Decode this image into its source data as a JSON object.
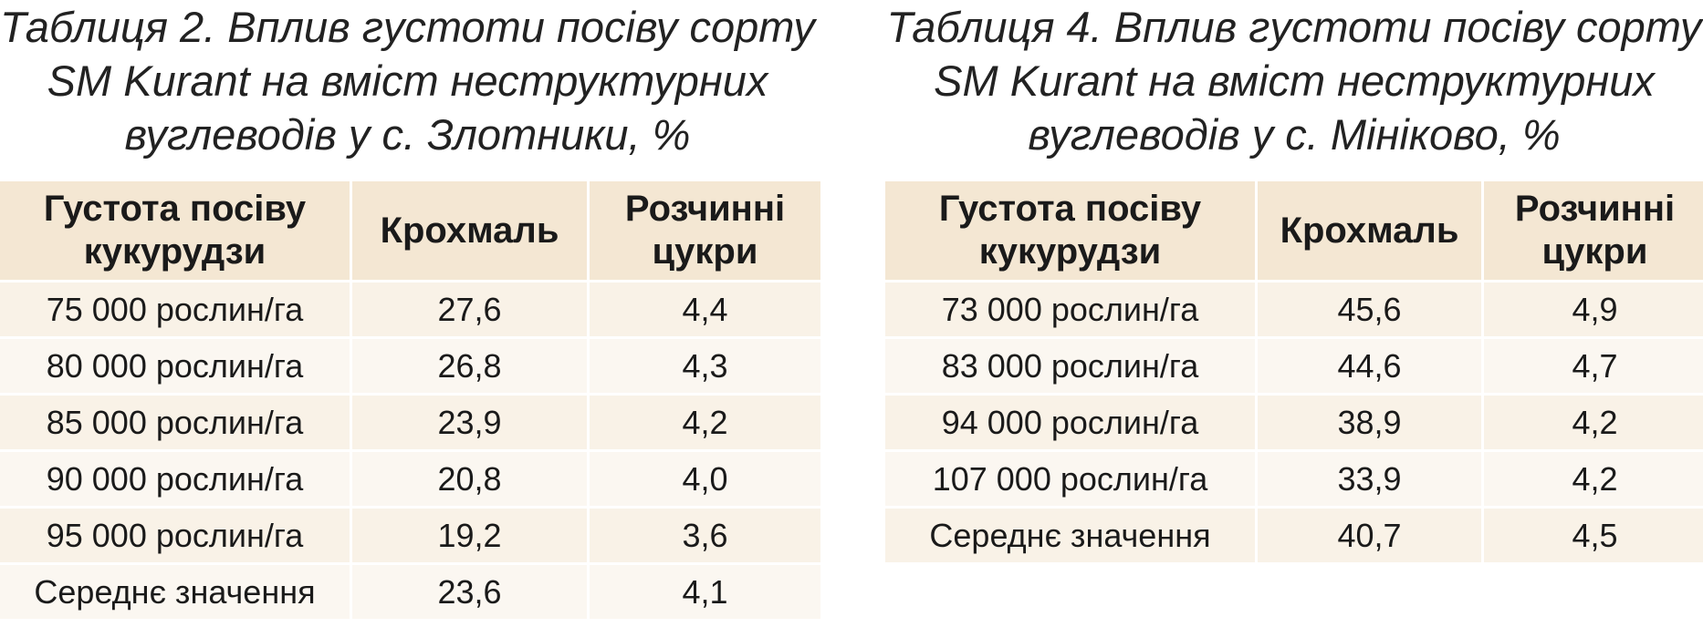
{
  "tables": [
    {
      "title": "Таблиця 2. Вплив густоти посіву сорту SM Kurant на вміст неструктурних вуглеводів у с. Злотники, %",
      "columns": [
        "Густота посіву кукурудзи",
        "Крохмаль",
        "Розчинні цукри"
      ],
      "rows": [
        [
          "75 000 рослин/га",
          "27,6",
          "4,4"
        ],
        [
          "80 000 рослин/га",
          "26,8",
          "4,3"
        ],
        [
          "85 000 рослин/га",
          "23,9",
          "4,2"
        ],
        [
          "90 000 рослин/га",
          "20,8",
          "4,0"
        ],
        [
          "95 000 рослин/га",
          "19,2",
          "3,6"
        ],
        [
          "Середнє значення",
          "23,6",
          "4,1"
        ]
      ]
    },
    {
      "title": "Таблиця 4. Вплив густоти посіву сорту SM Kurant на вміст неструктурних вуглеводів у с. Мініково, %",
      "columns": [
        "Густота посіву кукурудзи",
        "Крохмаль",
        "Розчинні цукри"
      ],
      "rows": [
        [
          "73 000 рослин/га",
          "45,6",
          "4,9"
        ],
        [
          "83 000 рослин/га",
          "44,6",
          "4,7"
        ],
        [
          "94 000 рослин/га",
          "38,9",
          "4,2"
        ],
        [
          "107 000 рослин/га",
          "33,9",
          "4,2"
        ],
        [
          "Середнє значення",
          "40,7",
          "4,5"
        ]
      ]
    }
  ]
}
